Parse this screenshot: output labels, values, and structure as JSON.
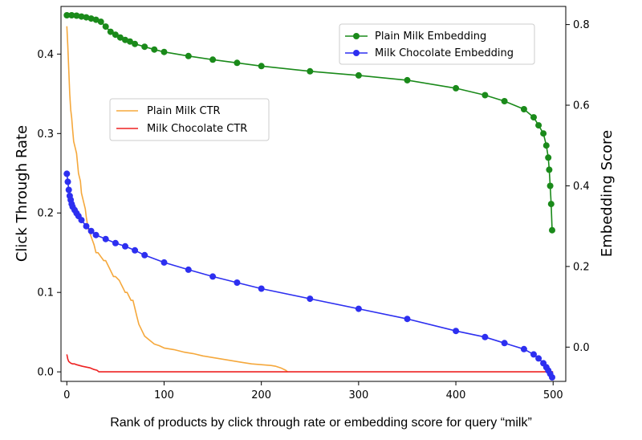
{
  "chart_data": {
    "type": "line",
    "xlabel": "Rank of products by click through rate or embedding score for query “milk”",
    "ylabel_left": "Click Through Rate",
    "ylabel_right": "Embedding Score",
    "xlim": [
      -6,
      513
    ],
    "ylim_left": [
      -0.012,
      0.46
    ],
    "ylim_right": [
      -0.085,
      0.845
    ],
    "x_ticks": [
      0,
      100,
      200,
      300,
      400,
      500
    ],
    "x_tick_labels": [
      "0",
      "100",
      "200",
      "300",
      "400",
      "500"
    ],
    "y_left_ticks": [
      0.0,
      0.1,
      0.2,
      0.3,
      0.4
    ],
    "y_left_tick_labels": [
      "0.0",
      "0.1",
      "0.2",
      "0.3",
      "0.4"
    ],
    "y_right_ticks": [
      0.0,
      0.2,
      0.4,
      0.6,
      0.8
    ],
    "y_right_tick_labels": [
      "0.0",
      "0.2",
      "0.4",
      "0.6",
      "0.8"
    ],
    "legend_left": {
      "placement": "center-left",
      "entries": [
        "Plain Milk CTR",
        "Milk Chocolate CTR"
      ]
    },
    "legend_right": {
      "placement": "top-right",
      "entries": [
        "Plain Milk Embedding",
        "Milk Chocolate Embedding"
      ]
    },
    "series": [
      {
        "name": "Plain Milk CTR",
        "axis": "left",
        "color": "#f5a83c",
        "style": "line",
        "x": [
          0,
          1,
          2,
          3,
          4,
          5,
          6,
          7,
          8,
          9,
          10,
          12,
          14,
          15,
          17,
          19,
          20,
          22,
          25,
          28,
          30,
          32,
          35,
          38,
          40,
          44,
          48,
          50,
          54,
          56,
          58,
          60,
          62,
          64,
          66,
          68,
          70,
          72,
          74,
          76,
          78,
          80,
          85,
          90,
          95,
          100,
          110,
          120,
          130,
          140,
          150,
          160,
          170,
          180,
          190,
          200,
          210,
          215,
          220,
          225,
          227
        ],
        "values": [
          0.435,
          0.41,
          0.38,
          0.35,
          0.33,
          0.32,
          0.305,
          0.29,
          0.285,
          0.28,
          0.275,
          0.25,
          0.24,
          0.225,
          0.215,
          0.205,
          0.195,
          0.18,
          0.17,
          0.16,
          0.15,
          0.15,
          0.145,
          0.14,
          0.14,
          0.13,
          0.12,
          0.12,
          0.115,
          0.11,
          0.105,
          0.1,
          0.1,
          0.095,
          0.09,
          0.09,
          0.08,
          0.07,
          0.06,
          0.055,
          0.05,
          0.045,
          0.04,
          0.035,
          0.033,
          0.03,
          0.028,
          0.025,
          0.023,
          0.02,
          0.018,
          0.016,
          0.014,
          0.012,
          0.01,
          0.009,
          0.008,
          0.007,
          0.005,
          0.002,
          0.0
        ]
      },
      {
        "name": "Milk Chocolate CTR",
        "axis": "left",
        "color": "#ee2222",
        "style": "line",
        "x": [
          0,
          1,
          2,
          4,
          6,
          8,
          10,
          13,
          16,
          20,
          24,
          28,
          31,
          33,
          40,
          100,
          200,
          300,
          400,
          500
        ],
        "values": [
          0.022,
          0.016,
          0.013,
          0.011,
          0.01,
          0.01,
          0.009,
          0.008,
          0.007,
          0.006,
          0.005,
          0.003,
          0.002,
          0.0,
          0.0,
          0.0,
          0.0,
          0.0,
          0.0,
          0.0
        ]
      },
      {
        "name": "Plain Milk Embedding",
        "axis": "right",
        "color": "#1a8a1a",
        "style": "line-marker",
        "x": [
          0,
          5,
          10,
          15,
          20,
          25,
          30,
          35,
          40,
          45,
          50,
          55,
          60,
          65,
          70,
          80,
          90,
          100,
          125,
          150,
          175,
          200,
          250,
          300,
          350,
          400,
          430,
          450,
          470,
          480,
          485,
          490,
          493,
          495,
          496,
          497,
          498,
          499
        ],
        "values": [
          0.823,
          0.823,
          0.822,
          0.82,
          0.818,
          0.815,
          0.812,
          0.807,
          0.795,
          0.782,
          0.775,
          0.768,
          0.762,
          0.758,
          0.752,
          0.745,
          0.738,
          0.732,
          0.722,
          0.713,
          0.705,
          0.697,
          0.684,
          0.674,
          0.662,
          0.642,
          0.625,
          0.61,
          0.59,
          0.57,
          0.55,
          0.53,
          0.5,
          0.47,
          0.44,
          0.4,
          0.355,
          0.29
        ]
      },
      {
        "name": "Milk Chocolate Embedding",
        "axis": "right",
        "color": "#2d2ff0",
        "style": "line-marker",
        "x": [
          0,
          1,
          2,
          3,
          4,
          5,
          6,
          8,
          10,
          12,
          15,
          20,
          25,
          30,
          40,
          50,
          60,
          70,
          80,
          100,
          125,
          150,
          175,
          200,
          250,
          300,
          350,
          400,
          430,
          450,
          470,
          480,
          485,
          490,
          493,
          495,
          497,
          499
        ],
        "values": [
          0.43,
          0.41,
          0.39,
          0.375,
          0.365,
          0.355,
          0.348,
          0.34,
          0.332,
          0.325,
          0.315,
          0.3,
          0.288,
          0.278,
          0.268,
          0.258,
          0.25,
          0.24,
          0.228,
          0.21,
          0.192,
          0.175,
          0.16,
          0.145,
          0.12,
          0.095,
          0.07,
          0.04,
          0.025,
          0.01,
          -0.005,
          -0.018,
          -0.028,
          -0.04,
          -0.05,
          -0.058,
          -0.066,
          -0.075
        ]
      }
    ]
  }
}
